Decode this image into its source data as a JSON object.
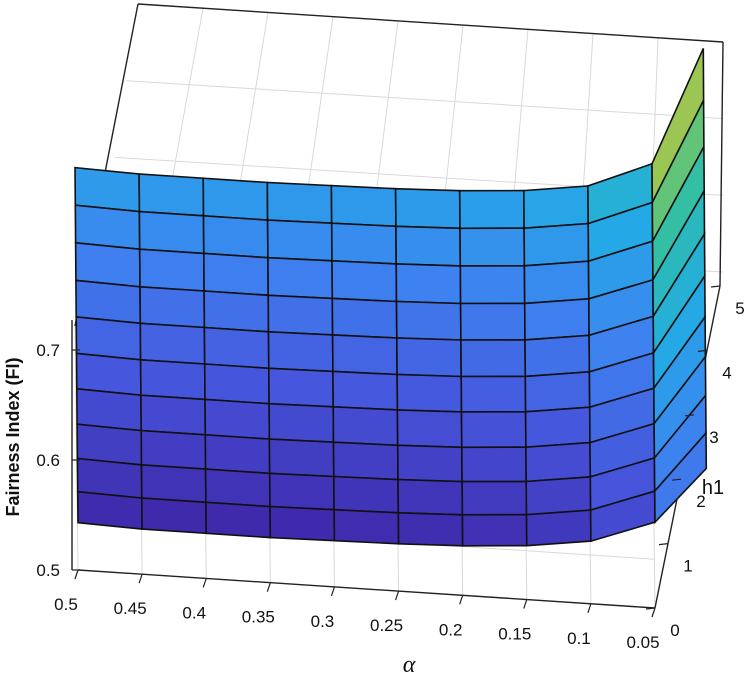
{
  "chart_data": {
    "type": "surface",
    "zlabel": "Fairness Index (FI)",
    "ylabel": "h1",
    "xlabel": "α",
    "x_ticks": [
      "0.5",
      "0.45",
      "0.4",
      "0.35",
      "0.3",
      "0.25",
      "0.2",
      "0.15",
      "0.1",
      "0.05"
    ],
    "y_ticks": [
      "0",
      "1",
      "2",
      "3",
      "4",
      "5"
    ],
    "z_ticks": [
      "0.5",
      "0.6",
      "0.7"
    ],
    "xlim": [
      0.05,
      0.5
    ],
    "ylim": [
      0,
      5
    ],
    "zlim": [
      0.5,
      0.85
    ],
    "x": [
      0.5,
      0.45,
      0.4,
      0.35,
      0.3,
      0.25,
      0.2,
      0.15,
      0.1,
      0.05,
      0.01
    ],
    "y": [
      0,
      0.5,
      1,
      1.5,
      2,
      2.5,
      3,
      3.5,
      4,
      4.5,
      5
    ],
    "z": [
      [
        0.543,
        0.541,
        0.541,
        0.541,
        0.542,
        0.543,
        0.545,
        0.549,
        0.557,
        0.578,
        0.63
      ],
      [
        0.549,
        0.547,
        0.547,
        0.547,
        0.548,
        0.549,
        0.551,
        0.555,
        0.563,
        0.584,
        0.64
      ],
      [
        0.557,
        0.555,
        0.555,
        0.555,
        0.556,
        0.557,
        0.559,
        0.563,
        0.571,
        0.592,
        0.652
      ],
      [
        0.566,
        0.564,
        0.564,
        0.564,
        0.565,
        0.566,
        0.568,
        0.572,
        0.58,
        0.601,
        0.665
      ],
      [
        0.576,
        0.574,
        0.574,
        0.574,
        0.575,
        0.576,
        0.578,
        0.582,
        0.59,
        0.611,
        0.679
      ],
      [
        0.586,
        0.584,
        0.584,
        0.584,
        0.585,
        0.586,
        0.588,
        0.592,
        0.6,
        0.621,
        0.694
      ],
      [
        0.597,
        0.595,
        0.595,
        0.595,
        0.596,
        0.597,
        0.599,
        0.603,
        0.611,
        0.632,
        0.71
      ],
      [
        0.608,
        0.606,
        0.606,
        0.606,
        0.607,
        0.608,
        0.61,
        0.614,
        0.622,
        0.643,
        0.727
      ],
      [
        0.62,
        0.618,
        0.618,
        0.618,
        0.619,
        0.62,
        0.622,
        0.626,
        0.634,
        0.656,
        0.745
      ],
      [
        0.632,
        0.63,
        0.63,
        0.63,
        0.631,
        0.632,
        0.634,
        0.638,
        0.646,
        0.669,
        0.765
      ],
      [
        0.644,
        0.642,
        0.642,
        0.642,
        0.643,
        0.644,
        0.646,
        0.65,
        0.658,
        0.682,
        0.79
      ]
    ],
    "colormap": "parula",
    "grid": true,
    "legend": "none"
  }
}
